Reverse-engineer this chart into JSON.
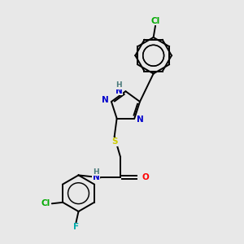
{
  "bg_color": "#e8e8e8",
  "atom_colors": {
    "C": "#000000",
    "N": "#0000cc",
    "O": "#ff0000",
    "S": "#cccc00",
    "Cl": "#00aa00",
    "F": "#00aaaa",
    "H": "#4a7a7a"
  },
  "bond_color": "#000000",
  "lw": 1.4,
  "ring_r": 0.75,
  "triazole_r": 0.62
}
